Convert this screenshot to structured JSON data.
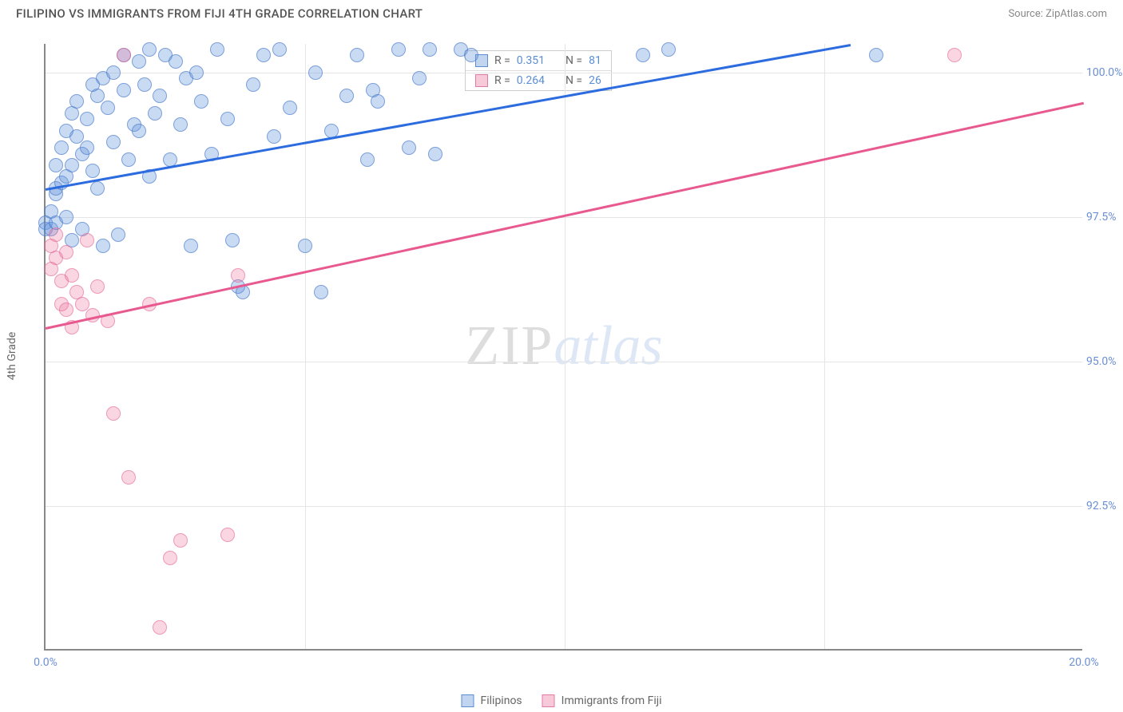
{
  "title": "FILIPINO VS IMMIGRANTS FROM FIJI 4TH GRADE CORRELATION CHART",
  "source_label": "Source:",
  "source_name": "ZipAtlas.com",
  "ylabel": "4th Grade",
  "watermark_a": "ZIP",
  "watermark_b": "atlas",
  "chart": {
    "type": "scatter",
    "xlim": [
      0,
      20
    ],
    "ylim": [
      90,
      100.5
    ],
    "xticks": [
      {
        "v": 0,
        "l": "0.0%"
      },
      {
        "v": 20,
        "l": "20.0%"
      }
    ],
    "xminor": [
      5,
      10,
      15
    ],
    "yticks": [
      {
        "v": 92.5,
        "l": "92.5%"
      },
      {
        "v": 95.0,
        "l": "95.0%"
      },
      {
        "v": 97.5,
        "l": "97.5%"
      },
      {
        "v": 100.0,
        "l": "100.0%"
      }
    ],
    "background_color": "#ffffff",
    "grid_color": "#e5e5e5",
    "axis_color": "#888888",
    "tick_color": "#6b8fd6",
    "marker_radius": 9,
    "series": [
      {
        "name": "Filipinos",
        "color_fill": "rgba(100,150,220,0.35)",
        "color_stroke": "rgba(70,120,200,0.6)",
        "line_color": "#2d6cdf",
        "R": "0.351",
        "N": "81",
        "reg": {
          "x0": 0,
          "y0": 98.0,
          "x1": 15.5,
          "y1": 100.5
        },
        "points": [
          [
            0.0,
            97.4
          ],
          [
            0.0,
            97.3
          ],
          [
            0.1,
            97.6
          ],
          [
            0.1,
            97.3
          ],
          [
            0.2,
            97.9
          ],
          [
            0.2,
            97.4
          ],
          [
            0.2,
            98.0
          ],
          [
            0.2,
            98.4
          ],
          [
            0.3,
            98.1
          ],
          [
            0.3,
            98.7
          ],
          [
            0.4,
            98.2
          ],
          [
            0.4,
            99.0
          ],
          [
            0.4,
            97.5
          ],
          [
            0.5,
            98.4
          ],
          [
            0.5,
            99.3
          ],
          [
            0.5,
            97.1
          ],
          [
            0.6,
            98.9
          ],
          [
            0.6,
            99.5
          ],
          [
            0.7,
            98.6
          ],
          [
            0.7,
            97.3
          ],
          [
            0.8,
            98.7
          ],
          [
            0.8,
            99.2
          ],
          [
            0.9,
            99.8
          ],
          [
            0.9,
            98.3
          ],
          [
            1.0,
            99.6
          ],
          [
            1.0,
            98.0
          ],
          [
            1.1,
            97.0
          ],
          [
            1.1,
            99.9
          ],
          [
            1.2,
            99.4
          ],
          [
            1.3,
            100.0
          ],
          [
            1.3,
            98.8
          ],
          [
            1.4,
            97.2
          ],
          [
            1.5,
            99.7
          ],
          [
            1.5,
            100.3
          ],
          [
            1.6,
            98.5
          ],
          [
            1.7,
            99.1
          ],
          [
            1.8,
            100.2
          ],
          [
            1.8,
            99.0
          ],
          [
            1.9,
            99.8
          ],
          [
            2.0,
            100.4
          ],
          [
            2.0,
            98.2
          ],
          [
            2.1,
            99.3
          ],
          [
            2.2,
            99.6
          ],
          [
            2.3,
            100.3
          ],
          [
            2.4,
            98.5
          ],
          [
            2.5,
            100.2
          ],
          [
            2.6,
            99.1
          ],
          [
            2.7,
            99.9
          ],
          [
            2.8,
            97.0
          ],
          [
            2.9,
            100.0
          ],
          [
            3.0,
            99.5
          ],
          [
            3.2,
            98.6
          ],
          [
            3.3,
            100.4
          ],
          [
            3.5,
            99.2
          ],
          [
            3.6,
            97.1
          ],
          [
            3.7,
            96.3
          ],
          [
            3.8,
            96.2
          ],
          [
            4.0,
            99.8
          ],
          [
            4.2,
            100.3
          ],
          [
            4.4,
            98.9
          ],
          [
            4.5,
            100.4
          ],
          [
            4.7,
            99.4
          ],
          [
            5.0,
            97.0
          ],
          [
            5.2,
            100.0
          ],
          [
            5.3,
            96.2
          ],
          [
            5.5,
            99.0
          ],
          [
            5.8,
            99.6
          ],
          [
            6.0,
            100.3
          ],
          [
            6.2,
            98.5
          ],
          [
            6.3,
            99.7
          ],
          [
            6.4,
            99.5
          ],
          [
            6.8,
            100.4
          ],
          [
            7.0,
            98.7
          ],
          [
            7.2,
            99.9
          ],
          [
            7.4,
            100.4
          ],
          [
            7.5,
            98.6
          ],
          [
            8.0,
            100.4
          ],
          [
            8.2,
            100.3
          ],
          [
            11.5,
            100.3
          ],
          [
            12.0,
            100.4
          ],
          [
            16.0,
            100.3
          ]
        ]
      },
      {
        "name": "Immigrants from Fiji",
        "color_fill": "rgba(235,120,160,0.3)",
        "color_stroke": "rgba(225,100,150,0.55)",
        "line_color": "#e85a8f",
        "R": "0.264",
        "N": "26",
        "reg": {
          "x0": 0,
          "y0": 95.6,
          "x1": 20,
          "y1": 99.5
        },
        "points": [
          [
            0.1,
            97.0
          ],
          [
            0.1,
            96.6
          ],
          [
            0.2,
            96.8
          ],
          [
            0.2,
            97.2
          ],
          [
            0.3,
            96.4
          ],
          [
            0.3,
            96.0
          ],
          [
            0.4,
            96.9
          ],
          [
            0.4,
            95.9
          ],
          [
            0.5,
            96.5
          ],
          [
            0.5,
            95.6
          ],
          [
            0.6,
            96.2
          ],
          [
            0.7,
            96.0
          ],
          [
            0.8,
            97.1
          ],
          [
            0.9,
            95.8
          ],
          [
            1.0,
            96.3
          ],
          [
            1.2,
            95.7
          ],
          [
            1.3,
            94.1
          ],
          [
            1.5,
            100.3
          ],
          [
            1.6,
            93.0
          ],
          [
            2.0,
            96.0
          ],
          [
            2.2,
            90.4
          ],
          [
            2.4,
            91.6
          ],
          [
            2.6,
            91.9
          ],
          [
            3.5,
            92.0
          ],
          [
            3.7,
            96.5
          ],
          [
            17.5,
            100.3
          ]
        ]
      }
    ]
  },
  "legend_top": {
    "rows": [
      {
        "swatch": "blue",
        "R_label": "R =",
        "R": "0.351",
        "N_label": "N =",
        "N": "81"
      },
      {
        "swatch": "pink",
        "R_label": "R =",
        "R": "0.264",
        "N_label": "N =",
        "N": "26"
      }
    ]
  },
  "legend_bottom": [
    {
      "swatch": "blue",
      "label": "Filipinos"
    },
    {
      "swatch": "pink",
      "label": "Immigrants from Fiji"
    }
  ]
}
